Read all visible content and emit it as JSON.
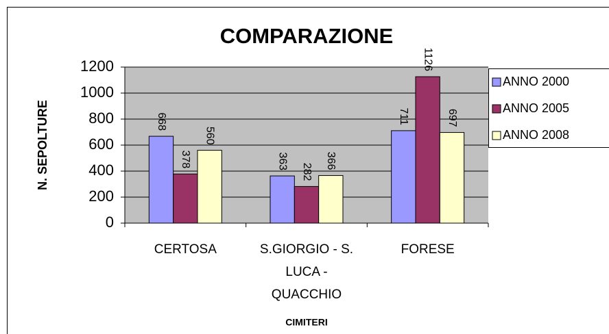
{
  "chart_data": {
    "type": "bar",
    "title": "COMPARAZIONE",
    "y_label": "N. SEPOLTURE",
    "x_label": "CIMITERI",
    "categories": [
      "CERTOSA",
      "S.GIORGIO - S. LUCA - QUACCHIO",
      "FORESE"
    ],
    "series": [
      {
        "name": "ANNO 2000",
        "color": "#9999ff",
        "values": [
          668,
          363,
          711
        ]
      },
      {
        "name": "ANNO 2005",
        "color": "#993366",
        "values": [
          378,
          282,
          1126
        ]
      },
      {
        "name": "ANNO 2008",
        "color": "#ffffcc",
        "values": [
          560,
          366,
          697
        ]
      }
    ],
    "ylim": [
      0,
      1200
    ],
    "yticks": [
      0,
      200,
      400,
      600,
      800,
      1000,
      1200
    ],
    "grid": true,
    "legend": "right"
  }
}
